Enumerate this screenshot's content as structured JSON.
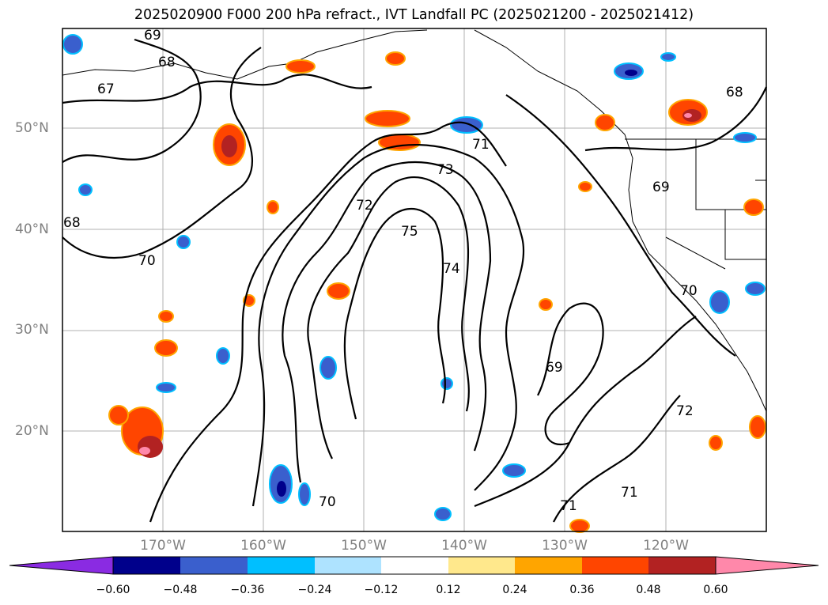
{
  "title": "2025020900 F000 200 hPa refract., IVT Landfall PC (2025021200 - 2025021412)",
  "lat_labels": [
    "50°N",
    "40°N",
    "30°N",
    "20°N"
  ],
  "lon_labels": [
    "170°W",
    "160°W",
    "150°W",
    "140°W",
    "130°W",
    "120°W"
  ],
  "contour_labels": [
    "69",
    "68",
    "67",
    "68",
    "70",
    "72",
    "73",
    "75",
    "74",
    "71",
    "69",
    "70",
    "68",
    "69",
    "71",
    "71",
    "72",
    "70"
  ],
  "colorbar": {
    "ticks": [
      "−0.60",
      "−0.48",
      "−0.36",
      "−0.24",
      "−0.12",
      "0.12",
      "0.24",
      "0.36",
      "0.48",
      "0.60"
    ],
    "colors": [
      "#8a2be2",
      "#00008b",
      "#3a5fcd",
      "#00bfff",
      "#aee3ff",
      "#ffffff",
      "#ffe88c",
      "#ffa500",
      "#ff4500",
      "#b22222",
      "#ff88aa"
    ]
  }
}
